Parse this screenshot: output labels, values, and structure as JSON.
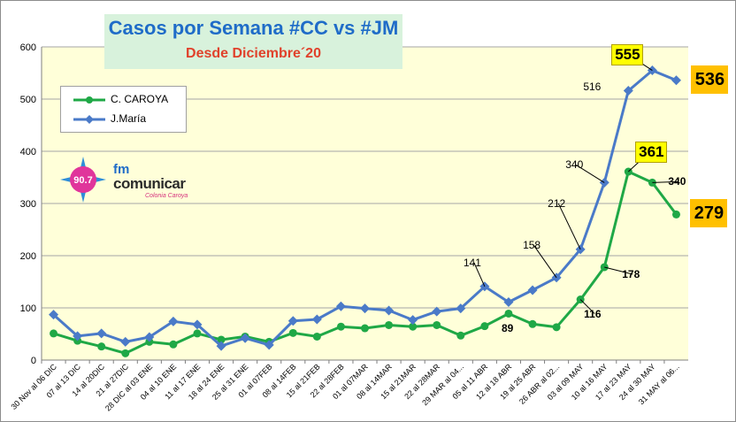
{
  "title": "Casos por Semana #CC vs #JM",
  "subtitle": "Desde Diciembre´20",
  "legend": {
    "cc": "C. CAROYA",
    "jm": "J.María"
  },
  "logo": {
    "frequency": "90.7",
    "prefix": "fm",
    "name": "comunicar",
    "place": "Colonia Caroya"
  },
  "colors": {
    "cc": "#1fa846",
    "jm": "#4a7ac8",
    "plot_bg": "#ffffd9",
    "grid": "#a6a6a6"
  },
  "chart_data": {
    "type": "line",
    "title": "Casos por Semana #CC vs #JM",
    "subtitle": "Desde Diciembre´20",
    "xlabel": "",
    "ylabel": "",
    "ylim": [
      0,
      600
    ],
    "yticks": [
      0,
      100,
      200,
      300,
      400,
      500,
      600
    ],
    "grid": true,
    "legend_position": "top-left",
    "categories": [
      "30 Nov al 06 DIC",
      "07 al 13 DIC",
      "14 al 20DIC",
      "21 al 27DIC",
      "28 DIC al 03 ENE",
      "04 al 10 ENE",
      "11 al 17 ENE",
      "18 al 24 ENE",
      "25 al 31 ENE",
      "01 al 07FEB",
      "08 al 14FEB",
      "15 al 21FEB",
      "22 al 28FEB",
      "01 al 07MAR",
      "08 al 14MAR",
      "15 al 21MAR",
      "22 al 28MAR",
      "29 MAR al 04...",
      "05  al 11 ABR",
      "12  al 18 ABR",
      "19  al 25 ABR",
      "26 ABR al 02...",
      "03 al 09 MAY",
      "10 al 16 MAY",
      "17 al 23 MAY",
      "24 al 30 MAY",
      "31 MAY al 06..."
    ],
    "series": [
      {
        "name": "C. CAROYA",
        "values": [
          51,
          37,
          26,
          13,
          35,
          30,
          51,
          39,
          45,
          35,
          52,
          45,
          64,
          61,
          67,
          64,
          67,
          47,
          65,
          89,
          69,
          63,
          116,
          178,
          361,
          340,
          279
        ]
      },
      {
        "name": "J.María",
        "values": [
          87,
          46,
          51,
          35,
          44,
          74,
          68,
          27,
          42,
          29,
          75,
          78,
          103,
          99,
          95,
          77,
          93,
          99,
          141,
          111,
          134,
          158,
          212,
          340,
          516,
          555,
          536
        ]
      }
    ],
    "annotations": [
      {
        "series": "C. CAROYA",
        "index": 19,
        "text": "89"
      },
      {
        "series": "C. CAROYA",
        "index": 22,
        "text": "116"
      },
      {
        "series": "C. CAROYA",
        "index": 23,
        "text": "178"
      },
      {
        "series": "C. CAROYA",
        "index": 24,
        "text": "361"
      },
      {
        "series": "C. CAROYA",
        "index": 25,
        "text": "340"
      },
      {
        "series": "C. CAROYA",
        "index": 26,
        "text": "279"
      },
      {
        "series": "J.María",
        "index": 18,
        "text": "141"
      },
      {
        "series": "J.María",
        "index": 21,
        "text": "158"
      },
      {
        "series": "J.María",
        "index": 22,
        "text": "212"
      },
      {
        "series": "J.María",
        "index": 23,
        "text": "340"
      },
      {
        "series": "J.María",
        "index": 24,
        "text": "516"
      },
      {
        "series": "J.María",
        "index": 25,
        "text": "555"
      },
      {
        "series": "J.María",
        "index": 26,
        "text": "536"
      }
    ]
  }
}
